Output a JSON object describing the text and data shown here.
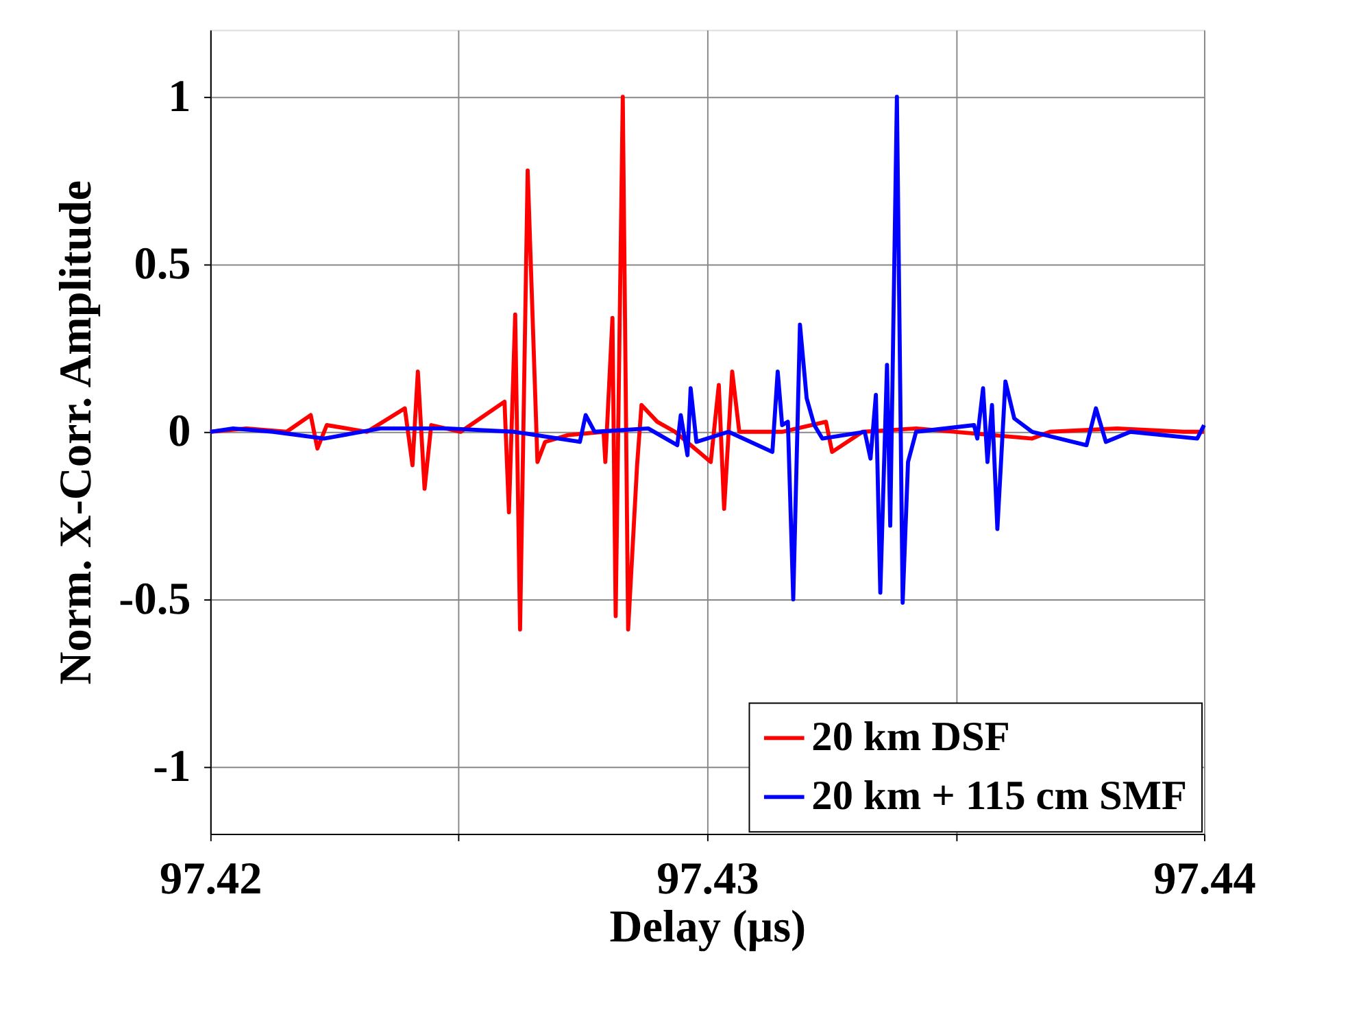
{
  "chart_data": {
    "type": "line",
    "xlabel": "Delay (μs)",
    "ylabel": "Norm. X-Corr. Amplitude",
    "xlim": [
      97.42,
      97.44
    ],
    "xticks": [
      97.42,
      {
        "value": 97.425,
        "label": null
      },
      97.43,
      {
        "value": 97.435,
        "label": null
      },
      97.44
    ],
    "ylim": [
      -1.2,
      1.2
    ],
    "yticks": [
      -1,
      -0.5,
      0,
      0.5,
      1
    ],
    "grid": true,
    "legend": "bottom right",
    "line_style": "solid",
    "series": [
      {
        "name": "20 km DSF",
        "color": "#ff0000",
        "x": [
          97.42,
          97.420728,
          97.421536,
          97.422022,
          97.422156,
          97.422345,
          97.423154,
          97.423916,
          97.42407,
          97.424178,
          97.424313,
          97.424447,
          97.42504,
          97.425922,
          97.426011,
          97.426137,
          97.426235,
          97.426388,
          97.426585,
          97.426739,
          97.427197,
          97.427916,
          97.427951,
          97.428094,
          97.428159,
          97.428302,
          97.42841,
          97.42859,
          97.428679,
          97.428995,
          97.429353,
          97.430073,
          97.430235,
          97.430342,
          97.430504,
          97.430647,
          97.431509,
          97.432391,
          97.432515,
          97.433127,
          97.434205,
          97.436542,
          97.4369,
          97.438248,
          97.439596,
          97.44
        ],
        "values": [
          0,
          0.01,
          0,
          0.05,
          -0.05,
          0.02,
          0,
          0.07,
          -0.1,
          0.18,
          -0.17,
          0.02,
          0,
          0.09,
          -0.24,
          0.35,
          -0.59,
          0.78,
          -0.09,
          -0.03,
          -0.01,
          0,
          -0.09,
          0.34,
          -0.55,
          1.0,
          -0.59,
          -0.1,
          0.08,
          0.03,
          0,
          -0.09,
          0.14,
          -0.23,
          0.18,
          0,
          0,
          0.03,
          -0.06,
          0,
          0.01,
          -0.02,
          0,
          0.01,
          0,
          0
        ]
      },
      {
        "name": "20 km + 115 cm SMF",
        "color": "#0000ff",
        "x": [
          97.42,
          97.420458,
          97.421267,
          97.422291,
          97.423423,
          97.424771,
          97.426119,
          97.427439,
          97.427555,
          97.427736,
          97.428814,
          97.429399,
          97.429469,
          97.429604,
          97.429668,
          97.429784,
          97.430431,
          97.431313,
          97.43142,
          97.431509,
          97.431625,
          97.431733,
          97.431868,
          97.432003,
          97.432156,
          97.432318,
          97.433173,
          97.433288,
          97.433396,
          97.433485,
          97.43362,
          97.433685,
          97.433819,
          97.433935,
          97.434043,
          97.434205,
          97.435372,
          97.435437,
          97.435553,
          97.435642,
          97.435733,
          97.435841,
          97.436003,
          97.436181,
          97.436542,
          97.437636,
          97.437825,
          97.438024,
          97.438518,
          97.439865,
          97.44
        ],
        "values": [
          0,
          0.01,
          0,
          -0.02,
          0.01,
          0.01,
          0,
          -0.03,
          0.05,
          0,
          0.01,
          -0.04,
          0.05,
          -0.07,
          0.13,
          -0.03,
          0,
          -0.06,
          0.18,
          0.02,
          0.03,
          -0.5,
          0.32,
          0.1,
          0.02,
          -0.02,
          0,
          -0.08,
          0.11,
          -0.48,
          0.2,
          -0.28,
          1.0,
          -0.51,
          -0.09,
          0,
          0.02,
          -0.02,
          0.13,
          -0.09,
          0.08,
          -0.29,
          0.15,
          0.04,
          0,
          -0.04,
          0.07,
          -0.03,
          0,
          -0.02,
          0.02
        ]
      }
    ]
  }
}
